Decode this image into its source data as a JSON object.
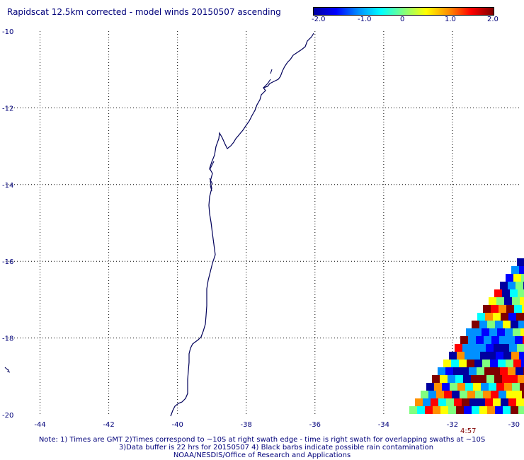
{
  "title": "Rapidscat 12.5km corrected - model winds 20150507 ascending",
  "colorbar": {
    "labels": [
      "-2.0",
      "-1.0",
      "0",
      "1.0",
      "2.0"
    ],
    "range": [
      -2.0,
      2.0
    ],
    "colors": [
      "#0000a0",
      "#0000ff",
      "#0090ff",
      "#00ffff",
      "#80ff80",
      "#ffff00",
      "#ff9000",
      "#ff0000",
      "#800000"
    ]
  },
  "map": {
    "lon_range": [
      -45,
      -30
    ],
    "lat_range": [
      -20,
      -10
    ],
    "x_ticks": [
      "-44",
      "-42",
      "-40",
      "-38",
      "-36",
      "-34",
      "-32",
      "-30"
    ],
    "y_ticks": [
      "-10",
      "-12",
      "-14",
      "-16",
      "-18",
      "-20"
    ],
    "grid": true,
    "coast_color": "#00005a"
  },
  "swath_time": "4:57",
  "notes": [
    "Note: 1) Times are GMT 2)Times correspond to ~10S at right swath edge - time is right swath for overlapping swaths at ~10S",
    "3)Data buffer is 22 hrs for 20150507 4) Black barbs indicate possible rain contamination",
    "NOAA/NESDIS/Office of Research and Applications"
  ]
}
